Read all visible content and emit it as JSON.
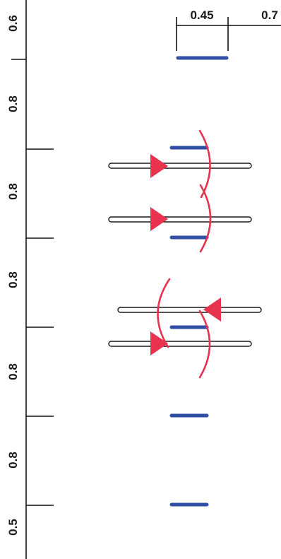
{
  "colors": {
    "axis": "#111111",
    "segment": "#2e4fa3",
    "arc": "#e8334f",
    "rod_outline": "#1a1a1a",
    "rod_fill": "#ffffff"
  },
  "scale": {
    "first_label": "0.45",
    "second_label": "0.7"
  },
  "axis_labels": [
    "0.6",
    "0.8",
    "0.8",
    "0.8",
    "0.8",
    "0.8",
    "0.5"
  ],
  "icons": {
    "arrow": "triangle-arrow-icon",
    "arc": "curved-arc-icon"
  }
}
